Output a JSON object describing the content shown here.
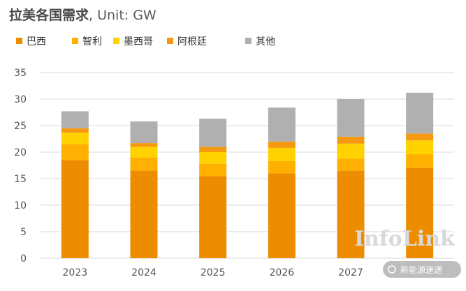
{
  "chart_data": {
    "type": "bar",
    "stacked": true,
    "title": "拉美各国需求",
    "unit": ", Unit: GW",
    "categories": [
      "2023",
      "2024",
      "2025",
      "2026",
      "2027",
      "2028"
    ],
    "series": [
      {
        "name": "巴西",
        "color": "#ee8c00",
        "values": [
          18.5,
          16.5,
          15.5,
          16.0,
          16.5,
          17.0
        ]
      },
      {
        "name": "智利",
        "color": "#ffb000",
        "values": [
          3.0,
          2.5,
          2.3,
          2.3,
          2.3,
          2.6
        ]
      },
      {
        "name": "墨西哥",
        "color": "#ffd200",
        "values": [
          2.2,
          2.0,
          2.2,
          2.5,
          2.8,
          2.6
        ]
      },
      {
        "name": "阿根廷",
        "color": "#f59a10",
        "values": [
          0.8,
          0.7,
          1.0,
          1.2,
          1.3,
          1.3
        ]
      },
      {
        "name": "其他",
        "color": "#b0b0b0",
        "values": [
          3.2,
          4.1,
          5.3,
          6.4,
          7.1,
          7.7
        ]
      }
    ],
    "yticks": [
      "0",
      "5",
      "10",
      "15",
      "20",
      "25",
      "30",
      "35"
    ],
    "ylim": [
      0,
      35
    ],
    "grid": true,
    "legend_position": "top"
  },
  "watermark": "InfoLink",
  "footer_caption": "新能源速递"
}
